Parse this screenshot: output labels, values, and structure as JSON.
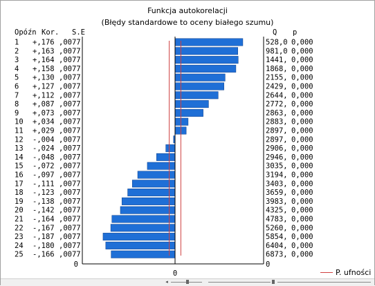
{
  "title": "Funkcja autokorelacji",
  "subtitle": "(Błędy standardowe to oceny białego szumu)",
  "chart_data": {
    "type": "bar",
    "orientation": "horizontal",
    "headers": {
      "lag": "Opóźn",
      "corr": "Kor.",
      "se": "S.E",
      "q": "Q",
      "p": "p"
    },
    "rows": [
      {
        "lag": "1",
        "corr": "+,176",
        "se": ",0077",
        "q": "528,0",
        "p": "0,000",
        "value": 0.176
      },
      {
        "lag": "2",
        "corr": "+,163",
        "se": ",0077",
        "q": "981,0",
        "p": "0,000",
        "value": 0.163
      },
      {
        "lag": "3",
        "corr": "+,164",
        "se": ",0077",
        "q": "1441,",
        "p": "0,000",
        "value": 0.164
      },
      {
        "lag": "4",
        "corr": "+,158",
        "se": ",0077",
        "q": "1868,",
        "p": "0,000",
        "value": 0.158
      },
      {
        "lag": "5",
        "corr": "+,130",
        "se": ",0077",
        "q": "2155,",
        "p": "0,000",
        "value": 0.13
      },
      {
        "lag": "6",
        "corr": "+,127",
        "se": ",0077",
        "q": "2429,",
        "p": "0,000",
        "value": 0.127
      },
      {
        "lag": "7",
        "corr": "+,112",
        "se": ",0077",
        "q": "2644,",
        "p": "0,000",
        "value": 0.112
      },
      {
        "lag": "8",
        "corr": "+,087",
        "se": ",0077",
        "q": "2772,",
        "p": "0,000",
        "value": 0.087
      },
      {
        "lag": "9",
        "corr": "+,073",
        "se": ",0077",
        "q": "2863,",
        "p": "0,000",
        "value": 0.073
      },
      {
        "lag": "10",
        "corr": "+,034",
        "se": ",0077",
        "q": "2883,",
        "p": "0,000",
        "value": 0.034
      },
      {
        "lag": "11",
        "corr": "+,029",
        "se": ",0077",
        "q": "2897,",
        "p": "0,000",
        "value": 0.029
      },
      {
        "lag": "12",
        "corr": "-,004",
        "se": ",0077",
        "q": "2897,",
        "p": "0,000",
        "value": -0.004
      },
      {
        "lag": "13",
        "corr": "-,024",
        "se": ",0077",
        "q": "2906,",
        "p": "0,000",
        "value": -0.024
      },
      {
        "lag": "14",
        "corr": "-,048",
        "se": ",0077",
        "q": "2946,",
        "p": "0,000",
        "value": -0.048
      },
      {
        "lag": "15",
        "corr": "-,072",
        "se": ",0077",
        "q": "3035,",
        "p": "0,000",
        "value": -0.072
      },
      {
        "lag": "16",
        "corr": "-,097",
        "se": ",0077",
        "q": "3194,",
        "p": "0,000",
        "value": -0.097
      },
      {
        "lag": "17",
        "corr": "-,111",
        "se": ",0077",
        "q": "3403,",
        "p": "0,000",
        "value": -0.111
      },
      {
        "lag": "18",
        "corr": "-,123",
        "se": ",0077",
        "q": "3659,",
        "p": "0,000",
        "value": -0.123
      },
      {
        "lag": "19",
        "corr": "-,138",
        "se": ",0077",
        "q": "3983,",
        "p": "0,000",
        "value": -0.138
      },
      {
        "lag": "20",
        "corr": "-,142",
        "se": ",0077",
        "q": "4325,",
        "p": "0,000",
        "value": -0.142
      },
      {
        "lag": "21",
        "corr": "-,164",
        "se": ",0077",
        "q": "4783,",
        "p": "0,000",
        "value": -0.164
      },
      {
        "lag": "22",
        "corr": "-,167",
        "se": ",0077",
        "q": "5260,",
        "p": "0,000",
        "value": -0.167
      },
      {
        "lag": "23",
        "corr": "-,187",
        "se": ",0077",
        "q": "5854,",
        "p": "0,000",
        "value": -0.187
      },
      {
        "lag": "24",
        "corr": "-,180",
        "se": ",0077",
        "q": "6404,",
        "p": "0,000",
        "value": -0.18
      },
      {
        "lag": "25",
        "corr": "-,166",
        "se": ",0077",
        "q": "6873,",
        "p": "0,000",
        "value": -0.166
      }
    ],
    "confidence_limit": 0.0151,
    "xlim": [
      -0.23,
      0.23
    ],
    "x_tick_label": "0",
    "y_bottom_label": "0",
    "q_bottom_label": "0",
    "bar_color": "#1f6fd6",
    "confidence_color": "#d04040",
    "legend": {
      "label": "P. ufności",
      "placement": "bottom-right"
    }
  }
}
